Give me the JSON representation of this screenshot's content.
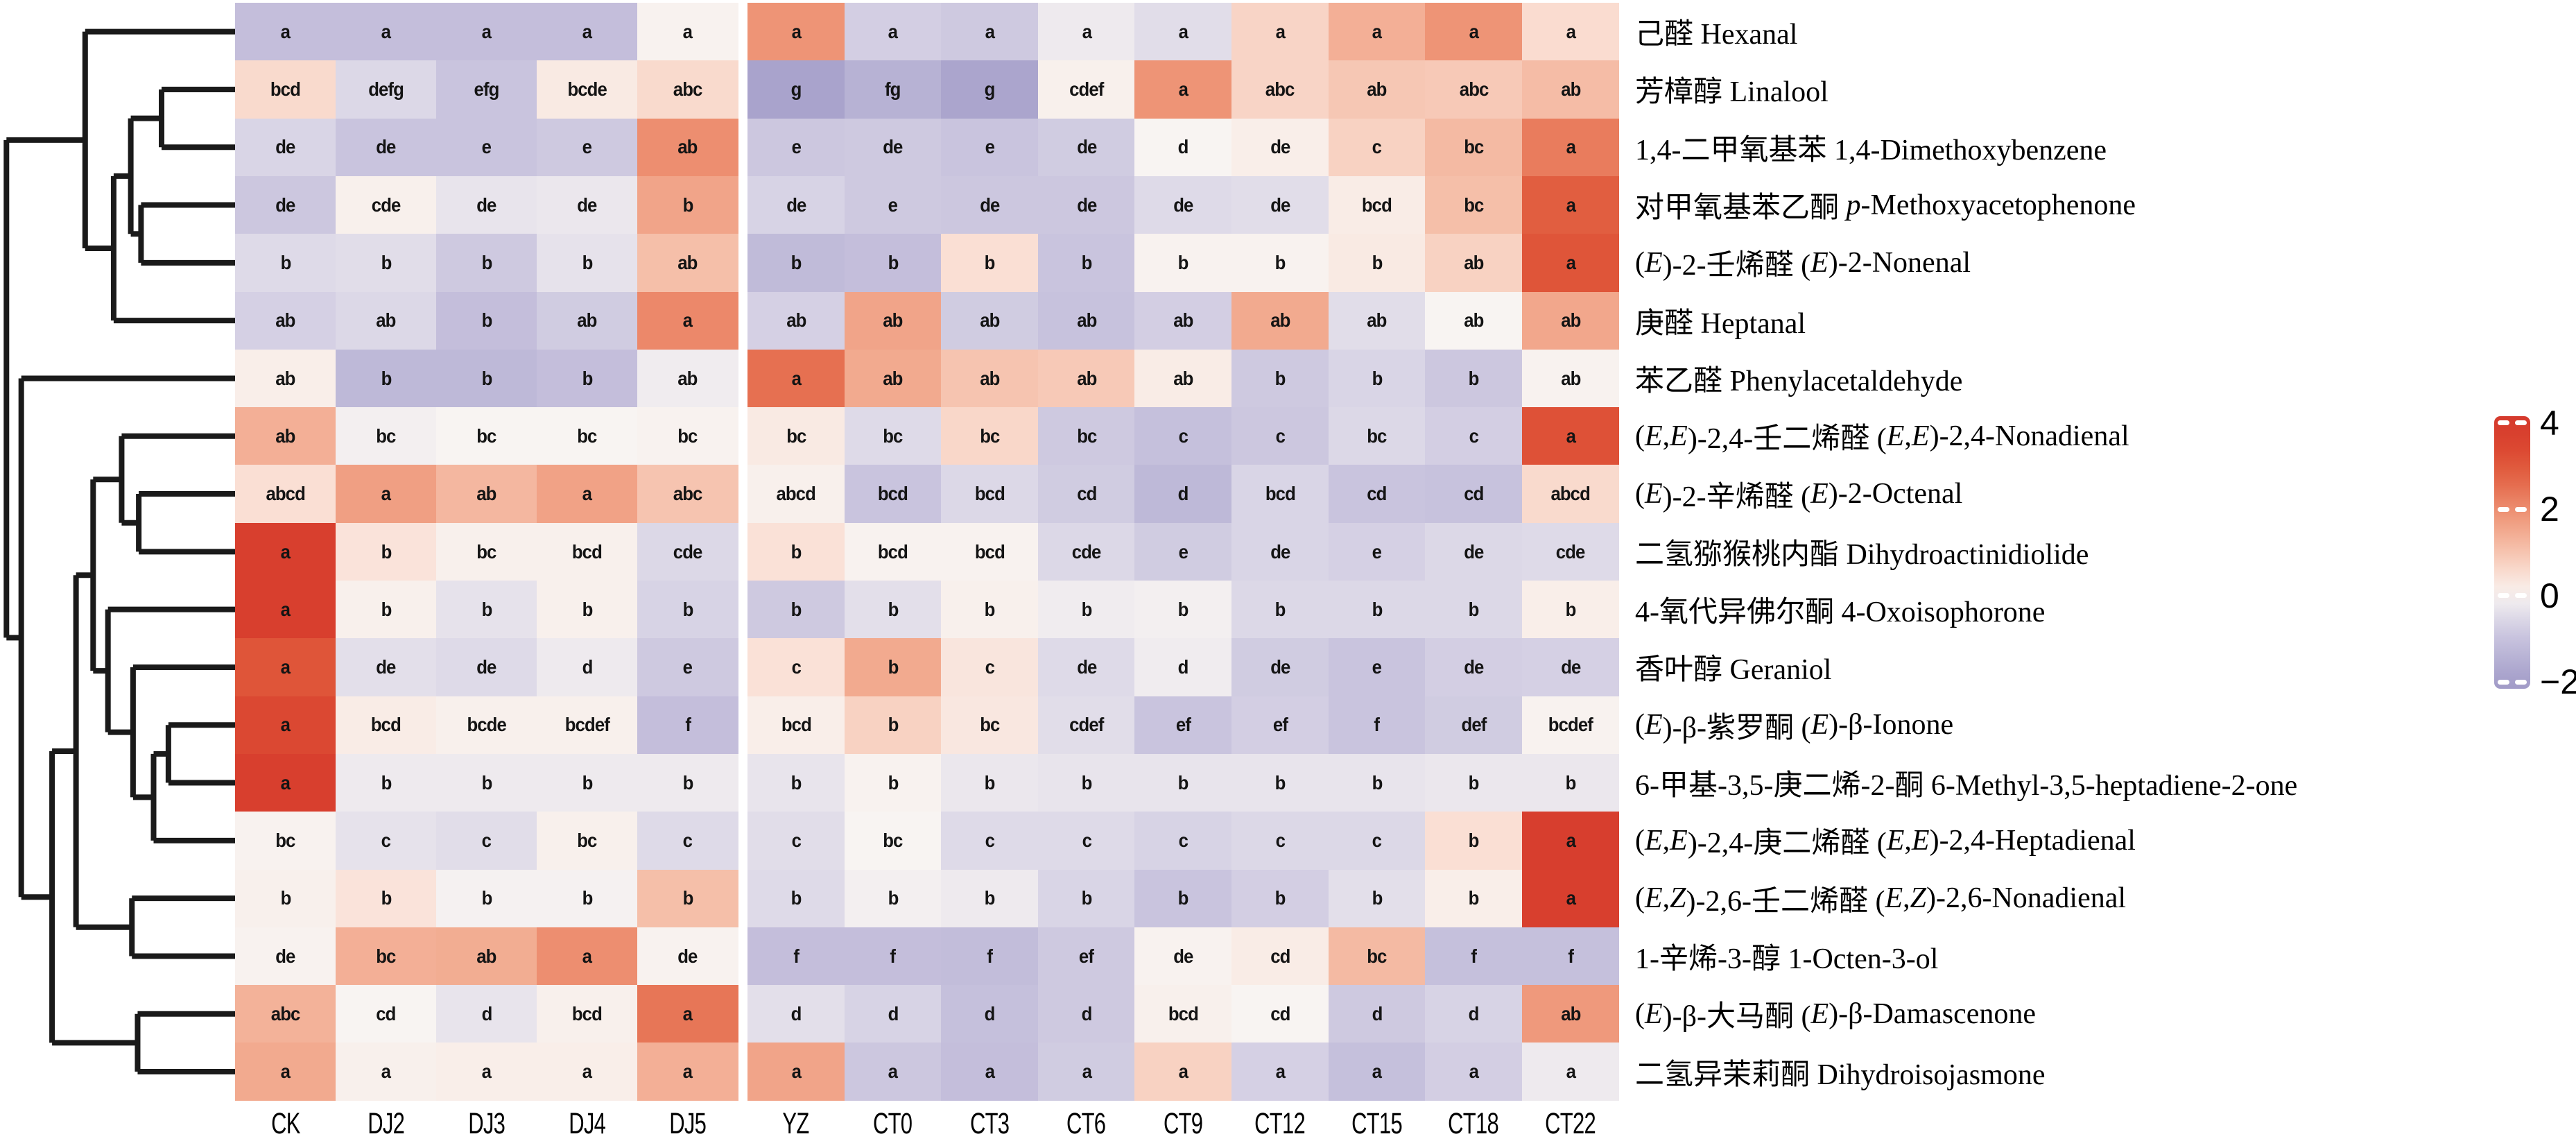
{
  "chart_data": {
    "type": "heatmap",
    "title": "",
    "legend_position": "right",
    "columns": [
      "CK",
      "DJ2",
      "DJ3",
      "DJ4",
      "DJ5",
      "YZ",
      "CT0",
      "CT3",
      "CT6",
      "CT9",
      "CT12",
      "CT15",
      "CT18",
      "CT22"
    ],
    "rows": [
      {
        "zh": "己醛",
        "en": "Hexanal",
        "letters": [
          "a",
          "a",
          "a",
          "a",
          "a",
          "a",
          "a",
          "a",
          "a",
          "a",
          "a",
          "a",
          "a",
          "a"
        ],
        "values": [
          -1.1,
          -1.1,
          -1.1,
          -1.1,
          0.05,
          1.9,
          -0.75,
          -0.85,
          -0.2,
          -0.45,
          0.7,
          1.4,
          1.9,
          0.55
        ]
      },
      {
        "zh": "芳樟醇",
        "en": "Linalool",
        "letters": [
          "bcd",
          "defg",
          "efg",
          "bcde",
          "abc",
          "g",
          "fg",
          "g",
          "cdef",
          "a",
          "abc",
          "ab",
          "abc",
          "ab"
        ],
        "values": [
          0.6,
          -0.55,
          -0.95,
          0.25,
          0.6,
          -1.85,
          -1.45,
          -1.8,
          0.1,
          1.9,
          0.7,
          0.95,
          0.9,
          1.15
        ]
      },
      {
        "zh": "1,4-二甲氧基苯",
        "en": "1,4-Dimethoxybenzene",
        "letters": [
          "de",
          "de",
          "e",
          "e",
          "ab",
          "e",
          "de",
          "e",
          "de",
          "d",
          "de",
          "c",
          "bc",
          "a"
        ],
        "values": [
          -0.6,
          -0.95,
          -0.95,
          -0.85,
          2.0,
          -0.9,
          -0.85,
          -0.95,
          -0.8,
          0.0,
          0.15,
          0.75,
          1.2,
          2.3
        ]
      },
      {
        "zh": "对甲氧基苯乙酮",
        "en": "p-Methoxyacetophenone",
        "letters": [
          "de",
          "cde",
          "de",
          "de",
          "b",
          "de",
          "e",
          "de",
          "de",
          "de",
          "de",
          "bcd",
          "bc",
          "a"
        ],
        "values": [
          -0.9,
          0.1,
          -0.3,
          -0.25,
          1.6,
          -0.65,
          -0.85,
          -0.9,
          -0.9,
          -0.5,
          -0.45,
          0.2,
          1.1,
          2.9
        ]
      },
      {
        "zh": "(E)-2-壬烯醛",
        "en": "(E)-2-Nonenal",
        "letters": [
          "b",
          "b",
          "b",
          "b",
          "ab",
          "b",
          "b",
          "b",
          "b",
          "b",
          "b",
          "b",
          "ab",
          "a"
        ],
        "values": [
          -0.5,
          -0.45,
          -0.85,
          -0.35,
          1.1,
          -1.2,
          -1.1,
          0.5,
          -0.95,
          0.05,
          0.05,
          0.25,
          0.75,
          3.1
        ]
      },
      {
        "zh": "庚醛",
        "en": "Heptanal",
        "letters": [
          "ab",
          "ab",
          "b",
          "ab",
          "a",
          "ab",
          "ab",
          "ab",
          "ab",
          "ab",
          "ab",
          "ab",
          "ab",
          "ab"
        ],
        "values": [
          -0.7,
          -0.55,
          -1.1,
          -0.8,
          2.1,
          -0.7,
          1.6,
          -0.8,
          -1.0,
          -0.75,
          1.5,
          -0.45,
          0.0,
          1.55
        ]
      },
      {
        "zh": "苯乙醛",
        "en": "Phenylacetaldehyde",
        "letters": [
          "ab",
          "b",
          "b",
          "b",
          "ab",
          "a",
          "ab",
          "ab",
          "ab",
          "ab",
          "b",
          "b",
          "b",
          "ab"
        ],
        "values": [
          0.15,
          -1.25,
          -1.25,
          -1.1,
          -0.15,
          2.5,
          1.5,
          1.0,
          0.9,
          0.2,
          -0.85,
          -0.6,
          -0.9,
          0.05
        ]
      },
      {
        "zh": "(E,E)-2,4-壬二烯醛",
        "en": "(E,E)-2,4-Nonadienal",
        "letters": [
          "ab",
          "bc",
          "bc",
          "bc",
          "bc",
          "bc",
          "bc",
          "bc",
          "bc",
          "c",
          "c",
          "bc",
          "c",
          "a"
        ],
        "values": [
          1.4,
          -0.1,
          0.0,
          0.0,
          0.05,
          0.25,
          -0.5,
          0.65,
          -0.85,
          -1.05,
          -0.9,
          -0.55,
          -0.75,
          3.2
        ]
      },
      {
        "zh": "(E)-2-辛烯醛",
        "en": "(E)-2-Octenal",
        "letters": [
          "abcd",
          "a",
          "ab",
          "a",
          "abc",
          "abcd",
          "bcd",
          "bcd",
          "cd",
          "d",
          "bcd",
          "cd",
          "cd",
          "abcd"
        ],
        "values": [
          0.5,
          1.7,
          1.25,
          1.65,
          1.0,
          0.1,
          -0.95,
          -0.55,
          -0.8,
          -1.25,
          -0.6,
          -0.95,
          -1.0,
          0.6
        ]
      },
      {
        "zh": "二氢猕猴桃内酯",
        "en": "Dihydroactinidiolide",
        "letters": [
          "a",
          "b",
          "bc",
          "bcd",
          "cde",
          "b",
          "bcd",
          "bcd",
          "cde",
          "e",
          "de",
          "e",
          "de",
          "cde"
        ],
        "values": [
          3.8,
          0.4,
          0.1,
          0.1,
          -0.55,
          0.45,
          0.05,
          0.05,
          -0.55,
          -0.8,
          -0.6,
          -0.7,
          -0.55,
          -0.5
        ]
      },
      {
        "zh": "4-氧代异佛尔酮",
        "en": "4-Oxoisophorone",
        "letters": [
          "a",
          "b",
          "b",
          "b",
          "b",
          "b",
          "b",
          "b",
          "b",
          "b",
          "b",
          "b",
          "b",
          "b"
        ],
        "values": [
          3.8,
          0.1,
          -0.35,
          0.1,
          -0.65,
          -0.85,
          -0.4,
          0.1,
          -0.15,
          -0.1,
          -0.55,
          -0.55,
          -0.55,
          0.15
        ]
      },
      {
        "zh": "香叶醇",
        "en": "Geraniol",
        "letters": [
          "a",
          "de",
          "de",
          "d",
          "e",
          "c",
          "b",
          "c",
          "de",
          "d",
          "de",
          "e",
          "de",
          "de"
        ],
        "values": [
          3.1,
          -0.4,
          -0.5,
          -0.2,
          -0.85,
          0.45,
          1.5,
          0.35,
          -0.5,
          -0.15,
          -0.8,
          -0.95,
          -0.75,
          -0.7
        ]
      },
      {
        "zh": "(E)-β-紫罗酮",
        "en": "(E)-β-Ionone",
        "letters": [
          "a",
          "bcd",
          "bcde",
          "bcdef",
          "f",
          "bcd",
          "b",
          "bc",
          "cdef",
          "ef",
          "ef",
          "f",
          "def",
          "bcdef"
        ],
        "values": [
          3.4,
          0.2,
          0.1,
          0.1,
          -1.1,
          0.15,
          0.75,
          0.3,
          -0.45,
          -0.95,
          -0.75,
          -0.95,
          -0.8,
          0.05
        ]
      },
      {
        "zh": "6-甲基-3,5-庚二烯-2-酮",
        "en": "6-Methyl-3,5-heptadiene-2-one",
        "letters": [
          "a",
          "b",
          "b",
          "b",
          "b",
          "b",
          "b",
          "b",
          "b",
          "b",
          "b",
          "b",
          "b",
          "b"
        ],
        "values": [
          3.8,
          -0.2,
          -0.2,
          -0.2,
          -0.2,
          -0.3,
          0.05,
          -0.25,
          -0.3,
          -0.3,
          -0.3,
          -0.3,
          -0.25,
          -0.25
        ]
      },
      {
        "zh": "(E,E)-2,4-庚二烯醛",
        "en": "(E,E)-2,4-Heptadienal",
        "letters": [
          "bc",
          "c",
          "c",
          "bc",
          "c",
          "c",
          "bc",
          "c",
          "c",
          "c",
          "c",
          "c",
          "b",
          "a"
        ],
        "values": [
          0.05,
          -0.35,
          -0.45,
          0.1,
          -0.5,
          -0.45,
          0.0,
          -0.5,
          -0.5,
          -0.65,
          -0.55,
          -0.55,
          0.5,
          3.9
        ]
      },
      {
        "zh": "(E,Z)-2,6-壬二烯醛",
        "en": "(E,Z)-2,6-Nonadienal",
        "letters": [
          "b",
          "b",
          "b",
          "b",
          "b",
          "b",
          "b",
          "b",
          "b",
          "b",
          "b",
          "b",
          "b",
          "a"
        ],
        "values": [
          0.1,
          0.4,
          -0.05,
          -0.05,
          1.1,
          -0.5,
          -0.1,
          -0.2,
          -0.6,
          -0.95,
          -0.75,
          -0.4,
          0.15,
          3.8
        ]
      },
      {
        "zh": "1-辛烯-3-醇",
        "en": "1-Octen-3-ol",
        "letters": [
          "de",
          "bc",
          "ab",
          "a",
          "de",
          "f",
          "f",
          "f",
          "ef",
          "de",
          "cd",
          "bc",
          "f",
          "f"
        ],
        "values": [
          0.05,
          1.4,
          1.45,
          2.0,
          0.05,
          -1.1,
          -1.1,
          -1.15,
          -0.85,
          0.05,
          0.2,
          1.2,
          -1.05,
          -1.05
        ]
      },
      {
        "zh": "(E)-β-大马酮",
        "en": "(E)-β-Damascenone",
        "letters": [
          "abc",
          "cd",
          "d",
          "bcd",
          "a",
          "d",
          "d",
          "d",
          "d",
          "bcd",
          "cd",
          "d",
          "d",
          "ab"
        ],
        "values": [
          1.35,
          0.0,
          -0.3,
          0.1,
          2.4,
          -0.4,
          -0.65,
          -1.05,
          -0.85,
          0.1,
          0.0,
          -0.85,
          -0.65,
          1.8
        ]
      },
      {
        "zh": "二氢异茉莉酮",
        "en": "Dihydroisojasmone",
        "letters": [
          "a",
          "a",
          "a",
          "a",
          "a",
          "a",
          "a",
          "a",
          "a",
          "a",
          "a",
          "a",
          "a",
          "a"
        ],
        "values": [
          1.5,
          0.1,
          0.15,
          0.15,
          1.4,
          1.6,
          -0.9,
          -1.1,
          -0.8,
          0.75,
          -0.7,
          -1.05,
          -0.75,
          -0.2
        ]
      }
    ],
    "colorbar": {
      "tick_labels": [
        "4",
        "2",
        "0",
        "−2"
      ],
      "tick_values": [
        4,
        2,
        0,
        -2
      ],
      "vmax": 4.16,
      "vmin": -2.16,
      "stops": [
        [
          -2.2,
          "#a09ac7"
        ],
        [
          -2.0,
          "#a49ec9"
        ],
        [
          -1.0,
          "#c7c2dd"
        ],
        [
          -0.5,
          "#dedae8"
        ],
        [
          0.0,
          "#f8f4f2"
        ],
        [
          0.5,
          "#fadfd4"
        ],
        [
          1.0,
          "#f6c4b0"
        ],
        [
          1.5,
          "#f2aa8f"
        ],
        [
          2.0,
          "#ed8e70"
        ],
        [
          2.5,
          "#e67051"
        ],
        [
          3.0,
          "#e0593c"
        ],
        [
          3.5,
          "#da442f"
        ],
        [
          4.2,
          "#d5392d"
        ]
      ]
    },
    "dendrogram": {
      "x": 0.01,
      "c": [
        {
          "x": 0.355,
          "c": [
            1,
            {
              "x": 0.48,
              "c": [
                {
                  "x": 0.555,
                  "c": [
                    {
                      "x": 0.69,
                      "c": [
                        2,
                        3
                      ]
                    },
                    {
                      "x": 0.6,
                      "c": [
                        4,
                        5
                      ]
                    }
                  ]
                },
                6
              ]
            }
          ]
        },
        {
          "x": 0.075,
          "c": [
            7,
            {
              "x": 0.21,
              "c": [
                {
                  "x": 0.315,
                  "c": [
                    {
                      "x": 0.39,
                      "c": [
                        {
                          "x": 0.515,
                          "c": [
                            8,
                            {
                              "x": 0.59,
                              "c": [
                                9,
                                10
                              ]
                            }
                          ]
                        },
                        {
                          "x": 0.455,
                          "c": [
                            11,
                            {
                              "x": 0.565,
                              "c": [
                                12,
                                {
                                  "x": 0.655,
                                  "c": [
                                    {
                                      "x": 0.72,
                                      "c": [
                                        13,
                                        14
                                      ]
                                    },
                                    15
                                  ]
                                }
                              ]
                            }
                          ]
                        }
                      ]
                    },
                    {
                      "x": 0.56,
                      "c": [
                        16,
                        17
                      ]
                    }
                  ]
                },
                {
                  "x": 0.585,
                  "c": [
                    18,
                    19
                  ]
                }
              ]
            }
          ]
        }
      ]
    },
    "colors": {
      "line": "#1a1a1a",
      "cell_text": "#141414",
      "background": "#ffffff"
    }
  }
}
